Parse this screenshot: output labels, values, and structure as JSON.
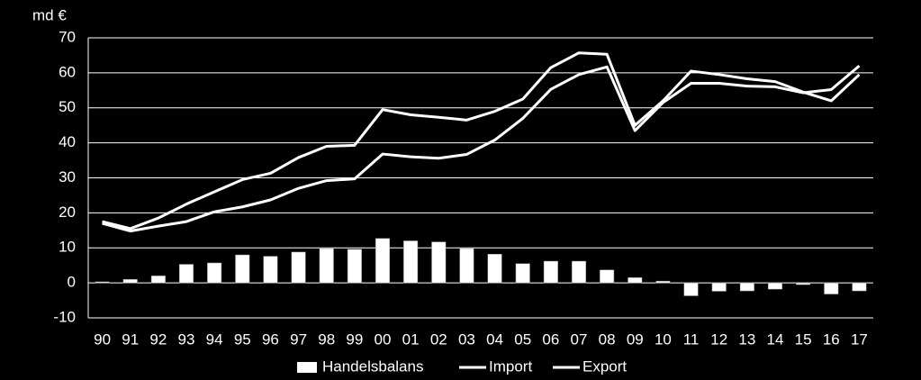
{
  "chart_data": {
    "type": "bar-line",
    "y_label": "md €",
    "categories": [
      "90",
      "91",
      "92",
      "93",
      "94",
      "95",
      "96",
      "97",
      "98",
      "99",
      "00",
      "01",
      "02",
      "03",
      "04",
      "05",
      "06",
      "07",
      "08",
      "09",
      "10",
      "11",
      "12",
      "13",
      "14",
      "15",
      "16",
      "17"
    ],
    "series": [
      {
        "name": "Handelsbalans",
        "type": "bar",
        "color": "#ffffff",
        "values": [
          0.3,
          1,
          2,
          5.3,
          5.7,
          8,
          7.6,
          8.8,
          9.8,
          9.6,
          12.7,
          12,
          11.7,
          9.8,
          8.2,
          5.5,
          6.2,
          6.2,
          3.7,
          1.5,
          0.5,
          -3.7,
          -2.4,
          -2.3,
          -1.8,
          -0.5,
          -3.2,
          -2.3
        ]
      },
      {
        "name": "Import",
        "type": "line",
        "color": "#ffffff",
        "values": [
          17,
          14.8,
          16.2,
          17.5,
          20.3,
          21.7,
          23.7,
          27,
          29.2,
          29.7,
          36.8,
          36,
          35.6,
          36.7,
          40.8,
          47,
          55.3,
          59.5,
          61.7,
          43.5,
          51.5,
          57,
          57,
          56.2,
          56,
          54.3,
          55.2,
          62
        ]
      },
      {
        "name": "Export",
        "type": "line",
        "color": "#ffffff",
        "values": [
          17.5,
          15.5,
          18.5,
          22.5,
          26,
          29.5,
          31.3,
          35.8,
          39,
          39.3,
          49.5,
          48,
          47.3,
          46.5,
          49,
          52.5,
          61.5,
          65.7,
          65.3,
          45,
          52,
          60.5,
          59.5,
          58.3,
          57.5,
          54.5,
          52,
          59.5
        ]
      }
    ],
    "ylim": [
      -10,
      70
    ],
    "yticks": [
      -10,
      0,
      10,
      20,
      30,
      40,
      50,
      60,
      70
    ],
    "grid": true
  }
}
